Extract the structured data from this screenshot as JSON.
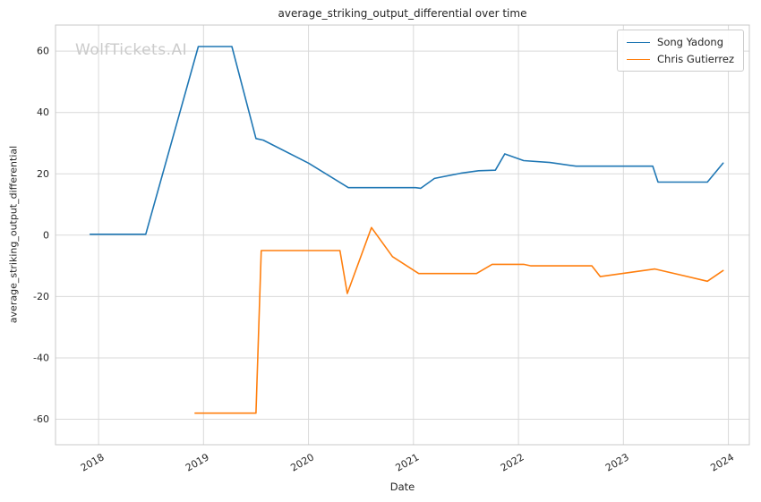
{
  "chart_data": {
    "type": "line",
    "title": "average_striking_output_differential over time",
    "xlabel": "Date",
    "ylabel": "average_striking_output_differential",
    "watermark": "WolfTickets.AI",
    "xlim": [
      2017.59,
      2024.2
    ],
    "ylim": [
      -68.3,
      68.5
    ],
    "xticks": [
      2018,
      2019,
      2020,
      2021,
      2022,
      2023,
      2024
    ],
    "yticks": [
      -60,
      -40,
      -20,
      0,
      20,
      40,
      60
    ],
    "grid": true,
    "legend": {
      "position": "upper-right",
      "entries": [
        "Song Yadong",
        "Chris Gutierrez"
      ]
    },
    "series": [
      {
        "name": "Song Yadong",
        "color": "#1f77b4",
        "points": [
          [
            2017.92,
            0.3
          ],
          [
            2018.45,
            0.3
          ],
          [
            2018.95,
            61.5
          ],
          [
            2019.27,
            61.5
          ],
          [
            2019.5,
            31.5
          ],
          [
            2019.57,
            31.0
          ],
          [
            2020.0,
            23.5
          ],
          [
            2020.38,
            15.5
          ],
          [
            2021.02,
            15.5
          ],
          [
            2021.07,
            15.3
          ],
          [
            2021.2,
            18.5
          ],
          [
            2021.45,
            20.2
          ],
          [
            2021.62,
            21.0
          ],
          [
            2021.78,
            21.2
          ],
          [
            2021.87,
            26.5
          ],
          [
            2022.05,
            24.3
          ],
          [
            2022.3,
            23.7
          ],
          [
            2022.55,
            22.5
          ],
          [
            2023.28,
            22.5
          ],
          [
            2023.33,
            17.3
          ],
          [
            2023.8,
            17.3
          ],
          [
            2023.95,
            23.5
          ]
        ]
      },
      {
        "name": "Chris Gutierrez",
        "color": "#ff7f0e",
        "points": [
          [
            2018.92,
            -58.0
          ],
          [
            2019.5,
            -58.0
          ],
          [
            2019.55,
            -5.0
          ],
          [
            2020.3,
            -5.0
          ],
          [
            2020.37,
            -19.0
          ],
          [
            2020.6,
            2.5
          ],
          [
            2020.8,
            -7.0
          ],
          [
            2021.05,
            -12.5
          ],
          [
            2021.6,
            -12.5
          ],
          [
            2021.75,
            -9.5
          ],
          [
            2022.05,
            -9.5
          ],
          [
            2022.12,
            -10.0
          ],
          [
            2022.7,
            -10.0
          ],
          [
            2022.78,
            -13.5
          ],
          [
            2023.3,
            -11.0
          ],
          [
            2023.8,
            -15.0
          ],
          [
            2023.95,
            -11.5
          ]
        ]
      }
    ]
  },
  "colors": {
    "grid": "#d9d9d9",
    "frame": "#c8c8c8",
    "text": "#262626",
    "watermark": "#cbcbcb",
    "legend_border": "#cccccc"
  }
}
